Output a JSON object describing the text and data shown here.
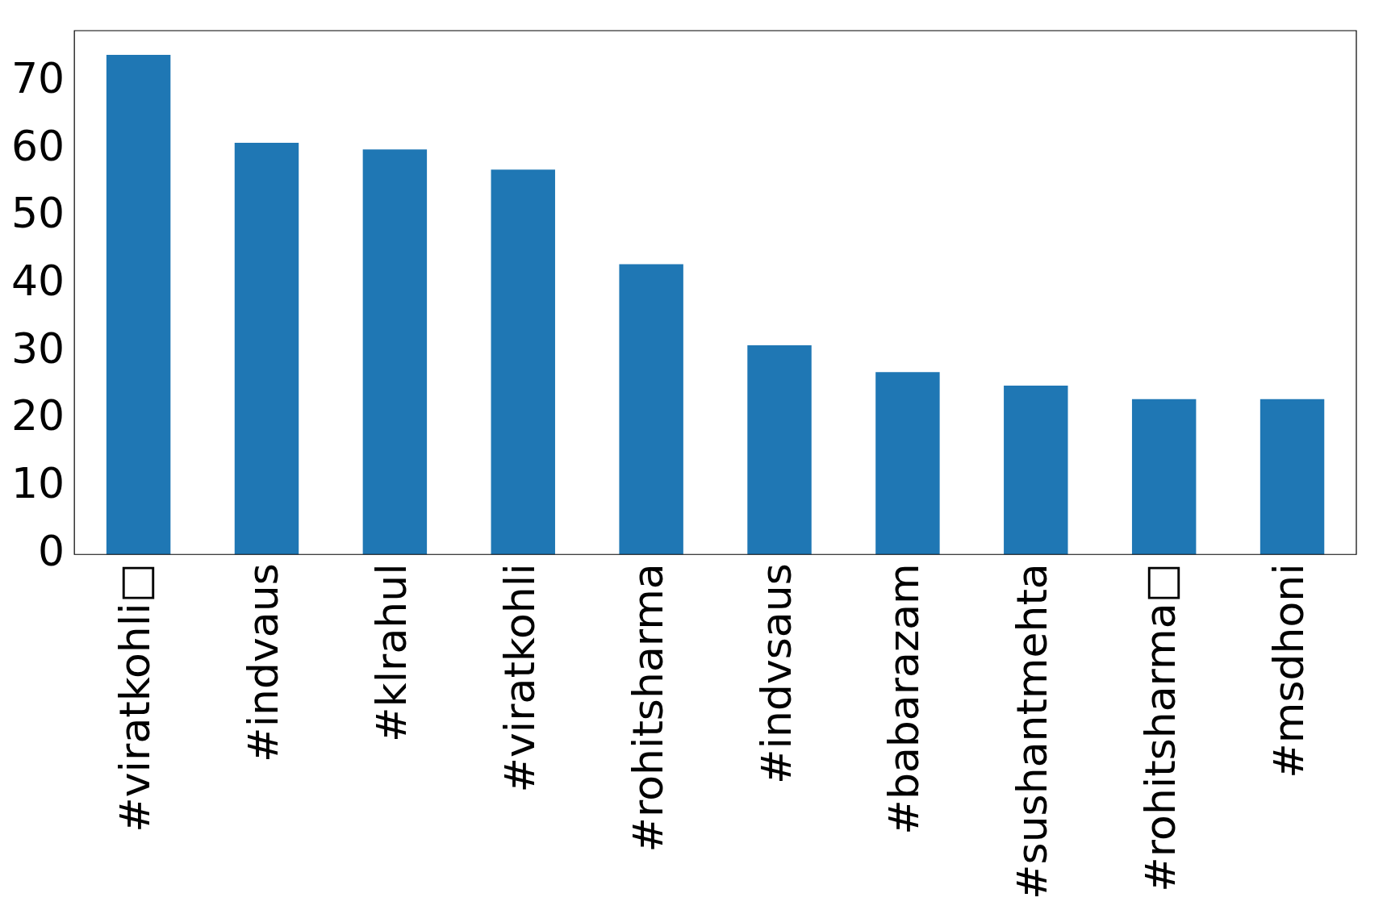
{
  "chart_data": {
    "type": "bar",
    "categories": [
      "#viratkohli□",
      "#indvaus",
      "#klrahul",
      "#viratkohli",
      "#rohitsharma",
      "#indvsaus",
      "#babarazam",
      "#sushantmehta",
      "#rohitsharma□",
      "#msdhoni"
    ],
    "values": [
      74,
      61,
      60,
      57,
      43,
      31,
      27,
      25,
      23,
      23
    ],
    "color": "#1f77b4",
    "ylim": [
      0,
      77.6
    ],
    "yticks": [
      0,
      10,
      20,
      30,
      40,
      50,
      60,
      70
    ],
    "grid": false,
    "legend": false
  }
}
